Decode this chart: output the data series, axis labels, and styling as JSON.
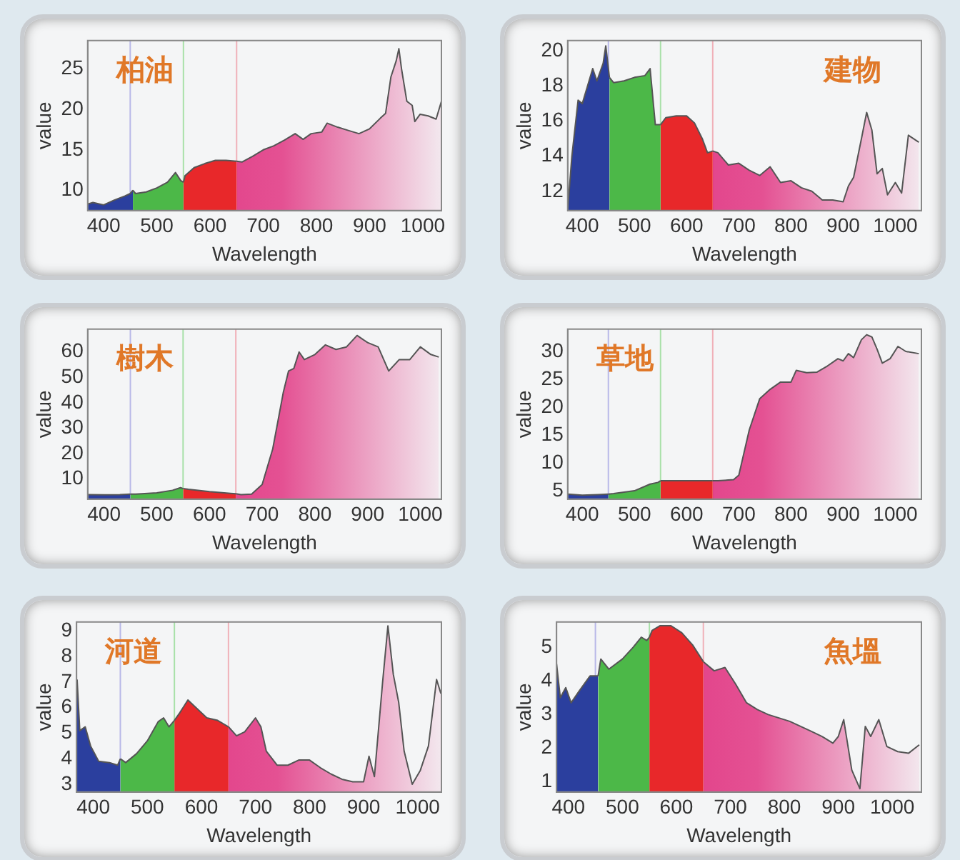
{
  "chart_data": [
    {
      "type": "area",
      "title": "柏油",
      "xlabel": "Wavelength",
      "ylabel": "value",
      "xlim": [
        370,
        1035
      ],
      "ylim": [
        7.5,
        28.5
      ],
      "xticks": [
        400,
        500,
        600,
        700,
        800,
        900,
        1000
      ],
      "yticks": [
        10,
        15,
        20,
        25
      ],
      "legend": false,
      "grid": false,
      "ref_lines": [
        {
          "axis": "x",
          "value": 450,
          "color": "#b8b8e8"
        },
        {
          "axis": "x",
          "value": 550,
          "color": "#a8e0a8"
        },
        {
          "axis": "x",
          "value": 650,
          "color": "#f0b0b8"
        }
      ],
      "series": [
        {
          "color": "#2b3f9e",
          "x": [
            370,
            380,
            400,
            420,
            440,
            450,
            455
          ],
          "values": [
            8.3,
            8.5,
            8.2,
            8.8,
            9.3,
            9.6,
            10
          ]
        },
        {
          "color": "#4cb848",
          "x": [
            455,
            460,
            480,
            500,
            520,
            535,
            545,
            550
          ],
          "values": [
            10,
            9.6,
            9.8,
            10.3,
            11,
            12.2,
            11.2,
            11
          ]
        },
        {
          "color": "#e8282a",
          "x": [
            550,
            553,
            570,
            590,
            610,
            630,
            650
          ],
          "values": [
            11,
            11.8,
            12.8,
            13.3,
            13.7,
            13.7,
            13.6
          ]
        },
        {
          "color": "#e0287a",
          "x": [
            650,
            660,
            680,
            700,
            720,
            740,
            760,
            775,
            790,
            810,
            820,
            840,
            860,
            880,
            900,
            920,
            930,
            940,
            950,
            955,
            960,
            970,
            980,
            985,
            995,
            1010,
            1025,
            1035
          ],
          "values": [
            13.6,
            13.5,
            14.2,
            15,
            15.5,
            16.2,
            17,
            16.3,
            17,
            17.2,
            18.3,
            17.8,
            17.4,
            17,
            17.6,
            18.9,
            19.5,
            24,
            26,
            27.5,
            25,
            21,
            20.5,
            18.5,
            19.4,
            19.2,
            18.8,
            21
          ]
        }
      ]
    },
    {
      "type": "area",
      "title": "建物",
      "xlabel": "Wavelength",
      "ylabel": "value",
      "xlim": [
        372,
        1050
      ],
      "ylim": [
        10.9,
        20.6
      ],
      "xticks": [
        400,
        500,
        600,
        700,
        800,
        900,
        1000
      ],
      "yticks": [
        12,
        14,
        16,
        18,
        20
      ],
      "legend": false,
      "grid": false,
      "ref_lines": [
        {
          "axis": "x",
          "value": 450,
          "color": "#b8b8e8"
        },
        {
          "axis": "x",
          "value": 550,
          "color": "#a8e0a8"
        },
        {
          "axis": "x",
          "value": 650,
          "color": "#f0b0b8"
        }
      ],
      "series": [
        {
          "color": "#2b3f9e",
          "x": [
            372,
            380,
            392,
            400,
            410,
            420,
            428,
            440,
            445,
            452
          ],
          "values": [
            10.9,
            14,
            17.2,
            17,
            18,
            19,
            18.3,
            19.3,
            20.3,
            18.5
          ]
        },
        {
          "color": "#4cb848",
          "x": [
            452,
            460,
            480,
            500,
            520,
            530,
            540,
            550
          ],
          "values": [
            18.5,
            18.2,
            18.3,
            18.5,
            18.6,
            19,
            15.8,
            15.8
          ]
        },
        {
          "color": "#e8282a",
          "x": [
            550,
            560,
            580,
            600,
            615,
            630,
            640,
            650
          ],
          "values": [
            15.8,
            16.2,
            16.3,
            16.3,
            15.9,
            15,
            14.2,
            14.3
          ]
        },
        {
          "color": "#e0287a",
          "x": [
            650,
            660,
            680,
            700,
            720,
            740,
            760,
            780,
            800,
            820,
            840,
            860,
            880,
            900,
            910,
            920,
            935,
            945,
            955,
            965,
            975,
            985,
            1000,
            1012,
            1025,
            1045
          ],
          "values": [
            14.3,
            14.2,
            13.5,
            13.6,
            13.2,
            12.9,
            13.4,
            12.5,
            12.6,
            12.2,
            12,
            11.5,
            11.5,
            11.4,
            12.3,
            12.8,
            15,
            16.5,
            15.5,
            13,
            13.3,
            11.8,
            12.5,
            11.9,
            15.2,
            14.8
          ]
        }
      ]
    },
    {
      "type": "area",
      "title": "樹木",
      "xlabel": "Wavelength",
      "ylabel": "value",
      "xlim": [
        369,
        1040
      ],
      "ylim": [
        2,
        69
      ],
      "xticks": [
        400,
        500,
        600,
        700,
        800,
        900,
        1000
      ],
      "yticks": [
        10,
        20,
        30,
        40,
        50,
        60
      ],
      "legend": false,
      "grid": false,
      "ref_lines": [
        {
          "axis": "x",
          "value": 450,
          "color": "#b8b8e8"
        },
        {
          "axis": "x",
          "value": 550,
          "color": "#a8e0a8"
        },
        {
          "axis": "x",
          "value": 650,
          "color": "#f0b0b8"
        }
      ],
      "series": [
        {
          "color": "#2b3f9e",
          "x": [
            370,
            400,
            430,
            450
          ],
          "values": [
            3.8,
            3.7,
            3.8,
            4
          ]
        },
        {
          "color": "#4cb848",
          "x": [
            450,
            460,
            500,
            530,
            545,
            550
          ],
          "values": [
            4,
            4,
            4.5,
            5.5,
            6.5,
            6.2
          ]
        },
        {
          "color": "#e8282a",
          "x": [
            550,
            560,
            600,
            640,
            650
          ],
          "values": [
            6.2,
            5.9,
            5,
            4.3,
            4.1
          ]
        },
        {
          "color": "#e0287a",
          "x": [
            650,
            660,
            680,
            700,
            720,
            740,
            750,
            760,
            770,
            780,
            800,
            820,
            840,
            860,
            880,
            900,
            920,
            940,
            960,
            980,
            1000,
            1020,
            1035
          ],
          "values": [
            4.1,
            3.8,
            4,
            7.8,
            21.8,
            44,
            52.5,
            53.5,
            60,
            57,
            59,
            62.8,
            61,
            62,
            66.5,
            63.7,
            62,
            52.5,
            57,
            57,
            62,
            59,
            58
          ]
        }
      ]
    },
    {
      "type": "area",
      "title": "草地",
      "xlabel": "Wavelength",
      "ylabel": "value",
      "xlim": [
        372,
        1050
      ],
      "ylim": [
        3.5,
        34
      ],
      "xticks": [
        400,
        500,
        600,
        700,
        800,
        900,
        1000
      ],
      "yticks": [
        5,
        10,
        15,
        20,
        25,
        30
      ],
      "legend": false,
      "grid": false,
      "ref_lines": [
        {
          "axis": "x",
          "value": 450,
          "color": "#b8b8e8"
        },
        {
          "axis": "x",
          "value": 550,
          "color": "#a8e0a8"
        },
        {
          "axis": "x",
          "value": 650,
          "color": "#f0b0b8"
        }
      ],
      "series": [
        {
          "color": "#2b3f9e",
          "x": [
            372,
            400,
            430,
            450
          ],
          "values": [
            4.4,
            4.2,
            4.3,
            4.4
          ]
        },
        {
          "color": "#4cb848",
          "x": [
            450,
            460,
            500,
            530,
            545,
            550
          ],
          "values": [
            4.4,
            4.5,
            5,
            6.2,
            6.5,
            6.8
          ]
        },
        {
          "color": "#e8282a",
          "x": [
            550,
            600,
            650
          ],
          "values": [
            6.8,
            6.8,
            6.8
          ]
        },
        {
          "color": "#e0287a",
          "x": [
            650,
            660,
            690,
            700,
            720,
            740,
            760,
            780,
            800,
            810,
            830,
            850,
            870,
            890,
            900,
            910,
            920,
            935,
            945,
            955,
            965,
            975,
            990,
            1005,
            1020,
            1045
          ],
          "values": [
            6.8,
            6.8,
            7,
            7.8,
            15.9,
            21.5,
            23.2,
            24.5,
            24.5,
            26.6,
            26.2,
            26.3,
            27.4,
            28.7,
            28.3,
            29.6,
            28.9,
            32.1,
            33,
            32.6,
            30.4,
            27.9,
            28.7,
            30.9,
            30,
            29.6
          ]
        }
      ]
    },
    {
      "type": "area",
      "title": "河道",
      "xlabel": "Wavelength",
      "ylabel": "value",
      "xlim": [
        369,
        1044
      ],
      "ylim": [
        2.7,
        9.35
      ],
      "xticks": [
        400,
        500,
        600,
        700,
        800,
        900,
        1000
      ],
      "yticks": [
        3,
        4,
        5,
        6,
        7,
        8,
        9
      ],
      "legend": false,
      "grid": false,
      "ref_lines": [
        {
          "axis": "x",
          "value": 450,
          "color": "#b8b8e8"
        },
        {
          "axis": "x",
          "value": 550,
          "color": "#a8e0a8"
        },
        {
          "axis": "x",
          "value": 650,
          "color": "#f0b0b8"
        }
      ],
      "series": [
        {
          "color": "#2b3f9e",
          "x": [
            370,
            375,
            385,
            395,
            410,
            430,
            445,
            450
          ],
          "values": [
            7.1,
            5.1,
            5.25,
            4.5,
            3.9,
            3.85,
            3.75,
            4
          ]
        },
        {
          "color": "#4cb848",
          "x": [
            450,
            460,
            480,
            500,
            520,
            530,
            540,
            550
          ],
          "values": [
            4,
            3.85,
            4.2,
            4.7,
            5.45,
            5.6,
            5.25,
            5.5
          ]
        },
        {
          "color": "#e8282a",
          "x": [
            550,
            560,
            575,
            590,
            610,
            630,
            650
          ],
          "values": [
            5.5,
            5.8,
            6.3,
            6,
            5.6,
            5.5,
            5.25
          ]
        },
        {
          "color": "#e0287a",
          "x": [
            650,
            665,
            680,
            700,
            710,
            720,
            740,
            760,
            780,
            800,
            820,
            840,
            860,
            880,
            900,
            910,
            920,
            935,
            945,
            955,
            965,
            975,
            990,
            1005,
            1020,
            1035,
            1043
          ],
          "values": [
            5.25,
            4.9,
            5.05,
            5.6,
            5.25,
            4.3,
            3.75,
            3.75,
            3.95,
            3.95,
            3.65,
            3.4,
            3.2,
            3.1,
            3.1,
            4.1,
            3.3,
            6.95,
            9.2,
            7.3,
            6.2,
            4.3,
            3,
            3.55,
            4.5,
            7.1,
            6.55
          ]
        }
      ]
    },
    {
      "type": "area",
      "title": "魚塭",
      "xlabel": "Wavelength",
      "ylabel": "value",
      "xlim": [
        378,
        1054
      ],
      "ylim": [
        0.7,
        5.75
      ],
      "xticks": [
        400,
        500,
        600,
        700,
        800,
        900,
        1000
      ],
      "yticks": [
        1,
        2,
        3,
        4,
        5
      ],
      "legend": false,
      "grid": false,
      "ref_lines": [
        {
          "axis": "x",
          "value": 450,
          "color": "#b8b8e8"
        },
        {
          "axis": "x",
          "value": 550,
          "color": "#a8e0a8"
        },
        {
          "axis": "x",
          "value": 650,
          "color": "#f0b0b8"
        }
      ],
      "series": [
        {
          "color": "#2b3f9e",
          "x": [
            378,
            385,
            395,
            405,
            420,
            440,
            455
          ],
          "values": [
            4.5,
            3.5,
            3.8,
            3.35,
            3.7,
            4.15,
            4.15
          ]
        },
        {
          "color": "#4cb848",
          "x": [
            455,
            460,
            475,
            500,
            520,
            535,
            545,
            550
          ],
          "values": [
            4.15,
            4.65,
            4.35,
            4.65,
            5,
            5.3,
            5.2,
            5.3
          ]
        },
        {
          "color": "#e8282a",
          "x": [
            550,
            555,
            570,
            590,
            610,
            630,
            650
          ],
          "values": [
            5.3,
            5.5,
            5.64,
            5.64,
            5.43,
            5.07,
            4.57
          ]
        },
        {
          "color": "#e0287a",
          "x": [
            650,
            670,
            690,
            710,
            730,
            750,
            770,
            790,
            810,
            830,
            850,
            870,
            890,
            900,
            910,
            925,
            940,
            950,
            960,
            975,
            990,
            1010,
            1030,
            1050
          ],
          "values": [
            4.57,
            4.3,
            4.4,
            3.9,
            3.35,
            3.15,
            3,
            2.9,
            2.8,
            2.65,
            2.5,
            2.35,
            2.15,
            2.35,
            2.85,
            1.35,
            0.8,
            2.65,
            2.35,
            2.85,
            2.05,
            1.9,
            1.85,
            2.1
          ]
        }
      ]
    }
  ]
}
